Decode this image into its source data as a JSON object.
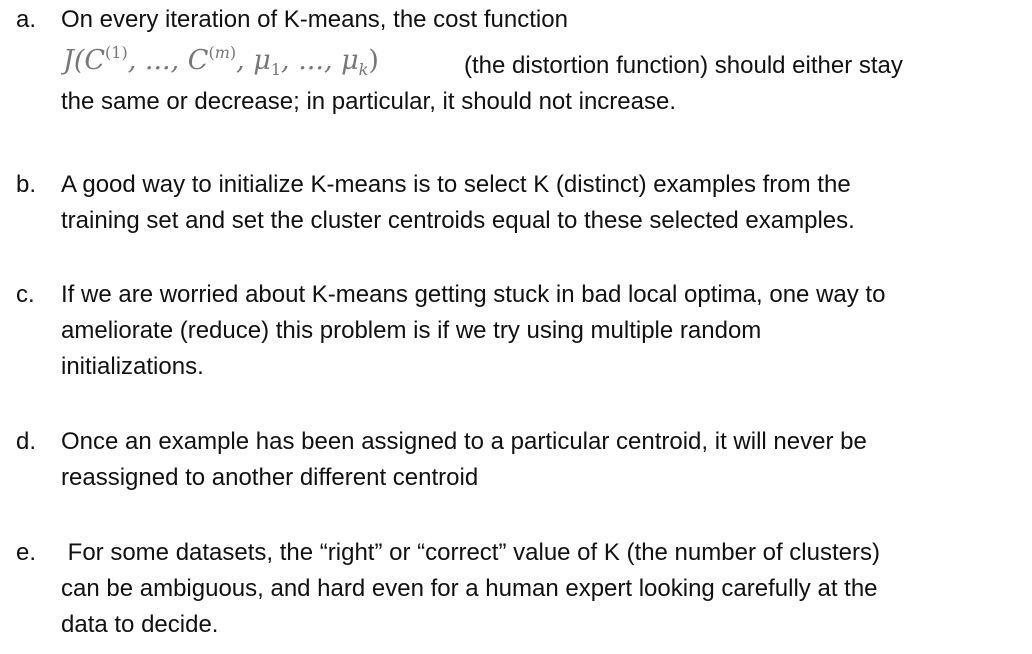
{
  "items": [
    {
      "marker": "a.",
      "line1": "On every iteration of K-means, the cost function",
      "formula": "J(C(1),...,C(m),μ1,...,μk)",
      "formula_after": "(the distortion function) should either stay",
      "line3": "the same or decrease; in particular, it should not increase."
    },
    {
      "marker": "b.",
      "lines": [
        "A good way to initialize K-means is to select K (distinct) examples from the",
        "training set and set the cluster centroids equal to these selected examples."
      ]
    },
    {
      "marker": "c.",
      "lines": [
        "If we are worried about K-means getting stuck in bad local optima, one way to",
        "ameliorate (reduce) this problem is if we try using multiple random",
        "initializations."
      ]
    },
    {
      "marker": "d.",
      "lines": [
        "Once an example has been assigned to a particular centroid, it will never be",
        "reassigned to another different centroid"
      ]
    },
    {
      "marker": "e.",
      "lines": [
        " For some datasets, the “right” or “correct” value of K (the number of clusters)",
        "can be ambiguous, and hard even for a human expert looking carefully at the",
        "data to decide."
      ]
    }
  ]
}
